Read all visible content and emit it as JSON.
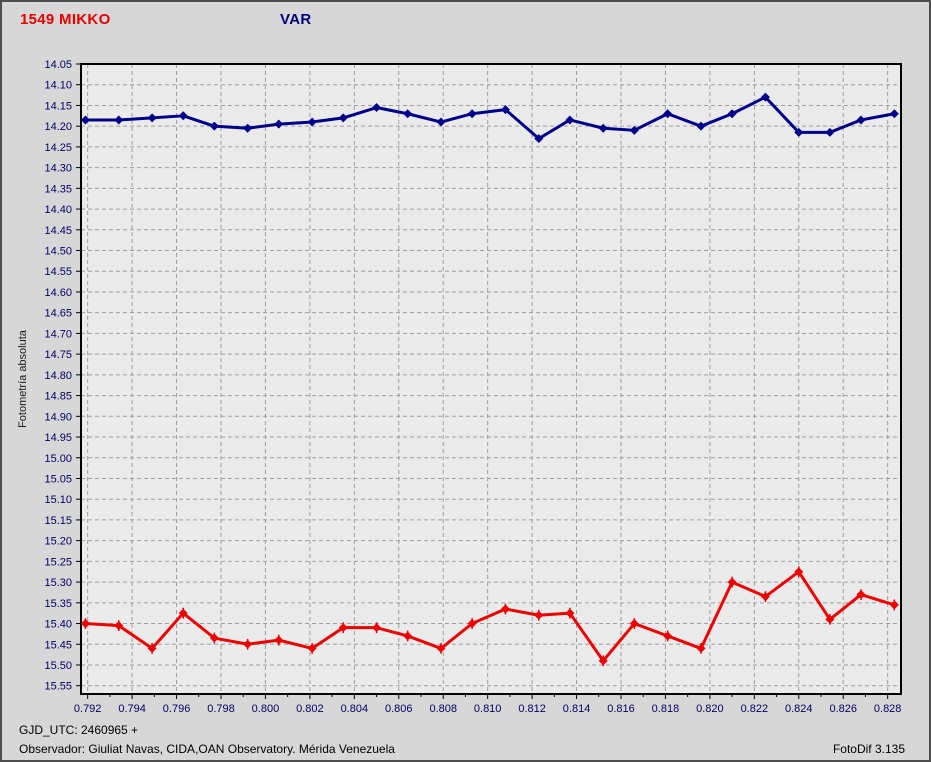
{
  "header": {
    "target_label": "1549 MIKKO",
    "var_label": "VAR"
  },
  "footer": {
    "gjd": "GJD_UTC: 2460965 +",
    "observer": "Observador: Giuliat Navas, CIDA,OAN Observatory. Mérida Venezuela",
    "app_version": "FotoDif 3.135"
  },
  "colors": {
    "target_series": "#ee0000",
    "comparison_series": "#00008b",
    "title_target": "#e40000",
    "title_var": "#000080",
    "axis_tick_label": "#000066",
    "axis_title": "#1a1a1a",
    "plot_bg": "#ebebeb",
    "window_bg": "#d7d7d7",
    "grid": "#9e9e9e",
    "frame": "#000000"
  },
  "chart_data": {
    "type": "line",
    "title": "1549 MIKKO",
    "subtitle": "VAR",
    "xlabel": "",
    "ylabel": "Fotometría absoluta",
    "grid": true,
    "legend": "none (series identified by colored titles above plot)",
    "xlim": [
      0.7917,
      0.8286
    ],
    "ylim_top_to_bottom": [
      14.05,
      15.57
    ],
    "y_axis": {
      "tick_min": 14.05,
      "tick_max": 15.55,
      "tick_step": 0.05,
      "decimals": 2,
      "inverted": true
    },
    "x_axis": {
      "tick_min": 0.792,
      "tick_max": 0.828,
      "tick_step": 0.002,
      "minor_step": 0.001,
      "decimals": 3
    },
    "x": [
      0.7919,
      0.7934,
      0.7949,
      0.7963,
      0.7977,
      0.7992,
      0.8006,
      0.8021,
      0.8035,
      0.805,
      0.8064,
      0.8079,
      0.8093,
      0.8108,
      0.8123,
      0.8137,
      0.8152,
      0.8166,
      0.8181,
      0.8196,
      0.821,
      0.8225,
      0.824,
      0.8254,
      0.8268,
      0.8283
    ],
    "series": [
      {
        "name": "VAR",
        "color": "#00008b",
        "err": 0.006,
        "values": [
          14.185,
          14.185,
          14.18,
          14.175,
          14.2,
          14.205,
          14.195,
          14.19,
          14.18,
          14.155,
          14.17,
          14.19,
          14.17,
          14.16,
          14.23,
          14.185,
          14.205,
          14.21,
          14.17,
          14.2,
          14.17,
          14.13,
          14.215,
          14.215,
          14.185,
          14.17
        ]
      },
      {
        "name": "1549 MIKKO",
        "color": "#ee0000",
        "err": 0.013,
        "values": [
          15.4,
          15.405,
          15.46,
          15.375,
          15.435,
          15.45,
          15.44,
          15.46,
          15.41,
          15.41,
          15.43,
          15.46,
          15.4,
          15.365,
          15.38,
          15.375,
          15.49,
          15.4,
          15.43,
          15.46,
          15.3,
          15.335,
          15.275,
          15.39,
          15.33,
          15.355
        ]
      }
    ]
  }
}
